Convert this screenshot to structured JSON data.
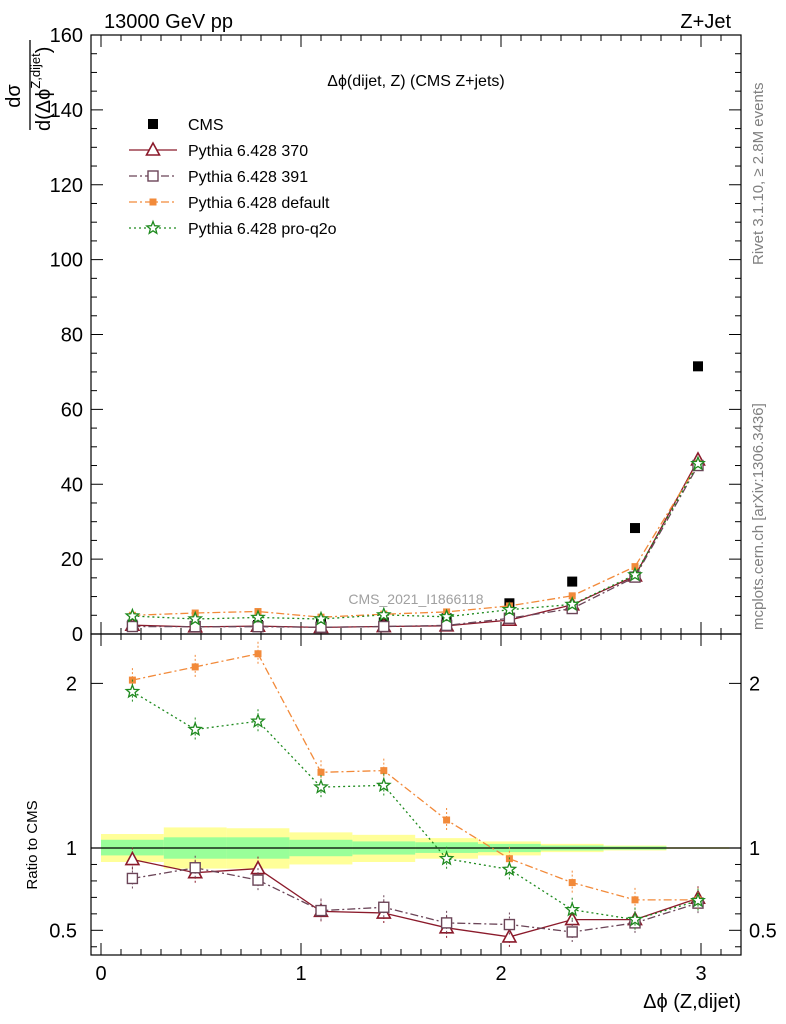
{
  "header": {
    "energy_label": "13000 GeV pp",
    "process_label": "Z+Jet"
  },
  "side_text": {
    "rivet": "Rivet 3.1.10, ≥ 2.8M events",
    "mcplots": "mcplots.cern.ch [arXiv:1306.3436]"
  },
  "colors": {
    "cms": "#000000",
    "p370": "#8b1a2b",
    "p391": "#6b4558",
    "pdefault": "#f28a3a",
    "pq2o": "#1e8a1e",
    "band_inner": "#99ff99",
    "band_outer": "#ffff99"
  },
  "chart_data": [
    {
      "type": "line",
      "panel": "main",
      "title": "Δϕ(dijet, Z) (CMS Z+jets)",
      "watermark": "CMS_2021_I1866118",
      "ylabel": "dσ / d(Δϕ^{Z,dijet})",
      "ylim": [
        0,
        160
      ],
      "xlim": [
        -0.05,
        3.2
      ],
      "yticks": [
        "0",
        "20",
        "40",
        "60",
        "80",
        "100",
        "120",
        "140",
        "160"
      ],
      "x": [
        0.157,
        0.471,
        0.785,
        1.1,
        1.414,
        1.728,
        2.042,
        2.356,
        2.67,
        2.985
      ],
      "series": [
        {
          "name": "CMS",
          "values": [
            2.5,
            2.2,
            2.4,
            2.8,
            3.1,
            4.2,
            8.2,
            14.0,
            28.3,
            71.5
          ]
        },
        {
          "name": "Pythia 6.428 370",
          "values": [
            2.35,
            1.9,
            2.1,
            1.75,
            2.0,
            2.2,
            3.7,
            7.8,
            15.5,
            46.5
          ]
        },
        {
          "name": "Pythia 6.428 391",
          "values": [
            2.0,
            1.95,
            1.95,
            1.8,
            2.0,
            2.3,
            4.2,
            6.8,
            15.2,
            45.0
          ]
        },
        {
          "name": "Pythia 6.428 default",
          "values": [
            5.0,
            5.6,
            6.0,
            4.5,
            5.3,
            5.9,
            7.5,
            10.2,
            18.0,
            45.5
          ]
        },
        {
          "name": "Pythia 6.428 pro-q2o",
          "values": [
            4.8,
            4.0,
            4.4,
            4.0,
            5.1,
            4.6,
            6.5,
            7.9,
            15.8,
            45.5
          ]
        }
      ]
    },
    {
      "type": "line",
      "panel": "ratio",
      "ylabel": "Ratio to CMS",
      "xlabel": "Δϕ (Z,dijet)",
      "ylim": [
        0.35,
        2.3
      ],
      "xlim": [
        -0.05,
        3.2
      ],
      "yticks": [
        "0.5",
        "1",
        "2"
      ],
      "xticks": [
        "0",
        "1",
        "2",
        "3"
      ],
      "x": [
        0.157,
        0.471,
        0.785,
        1.1,
        1.414,
        1.728,
        2.042,
        2.356,
        2.67,
        2.985
      ],
      "band_edges": [
        0.0,
        0.314,
        0.628,
        0.942,
        1.257,
        1.571,
        1.885,
        2.199,
        2.513,
        2.827,
        3.142
      ],
      "band_outer": [
        [
          0.915,
          1.085
        ],
        [
          0.875,
          1.125
        ],
        [
          0.875,
          1.12
        ],
        [
          0.9,
          1.095
        ],
        [
          0.915,
          1.08
        ],
        [
          0.935,
          1.06
        ],
        [
          0.955,
          1.04
        ],
        [
          0.975,
          1.025
        ],
        [
          0.985,
          1.015
        ],
        [
          0.995,
          1.005
        ]
      ],
      "band_inner": [
        [
          0.955,
          1.05
        ],
        [
          0.935,
          1.065
        ],
        [
          0.935,
          1.065
        ],
        [
          0.95,
          1.05
        ],
        [
          0.96,
          1.04
        ],
        [
          0.97,
          1.035
        ],
        [
          0.975,
          1.025
        ],
        [
          0.985,
          1.015
        ],
        [
          0.99,
          1.01
        ],
        [
          0.997,
          1.003
        ]
      ],
      "series": [
        {
          "name": "Pythia 6.428 370",
          "values": [
            0.93,
            0.85,
            0.875,
            0.615,
            0.605,
            0.515,
            0.46,
            0.565,
            0.565,
            0.695
          ]
        },
        {
          "name": "Pythia 6.428 391",
          "values": [
            0.815,
            0.88,
            0.805,
            0.62,
            0.64,
            0.545,
            0.535,
            0.49,
            0.545,
            0.665
          ]
        },
        {
          "name": "Pythia 6.428 default",
          "values": [
            2.02,
            2.1,
            2.18,
            1.46,
            1.47,
            1.17,
            0.935,
            0.79,
            0.685,
            0.685
          ]
        },
        {
          "name": "Pythia 6.428 pro-q2o",
          "values": [
            1.95,
            1.72,
            1.77,
            1.37,
            1.38,
            0.935,
            0.87,
            0.625,
            0.565,
            0.68
          ]
        }
      ]
    }
  ]
}
